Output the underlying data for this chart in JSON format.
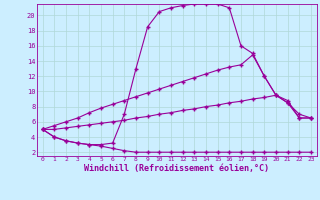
{
  "bg_color": "#cceeff",
  "grid_color": "#b0d8d8",
  "line_color": "#990099",
  "marker": "+",
  "markersize": 3.0,
  "linewidth": 0.8,
  "xlabel": "Windchill (Refroidissement éolien,°C)",
  "xlabel_fontsize": 6.0,
  "xlim": [
    -0.5,
    23.5
  ],
  "ylim": [
    1.5,
    21.5
  ],
  "xticks": [
    0,
    1,
    2,
    3,
    4,
    5,
    6,
    7,
    8,
    9,
    10,
    11,
    12,
    13,
    14,
    15,
    16,
    17,
    18,
    19,
    20,
    21,
    22,
    23
  ],
  "yticks": [
    2,
    4,
    6,
    8,
    10,
    12,
    14,
    16,
    18,
    20
  ],
  "series": [
    [
      5.0,
      4.0,
      3.5,
      3.2,
      3.0,
      2.8,
      2.5,
      2.2,
      2.0,
      2.0,
      2.0,
      2.0,
      2.0,
      2.0,
      2.0,
      2.0,
      2.0,
      2.0,
      2.0,
      2.0,
      2.0,
      2.0,
      2.0,
      2.0
    ],
    [
      5.0,
      4.0,
      3.5,
      3.2,
      3.0,
      3.0,
      3.2,
      7.0,
      13.0,
      18.5,
      20.5,
      21.0,
      21.3,
      21.5,
      21.5,
      21.5,
      21.0,
      16.0,
      15.0,
      12.0,
      9.5,
      8.5,
      7.0,
      6.5
    ],
    [
      5.0,
      5.5,
      6.0,
      6.5,
      7.2,
      7.8,
      8.3,
      8.8,
      9.3,
      9.8,
      10.3,
      10.8,
      11.3,
      11.8,
      12.3,
      12.8,
      13.2,
      13.5,
      14.8,
      12.0,
      9.5,
      8.8,
      6.5,
      6.5
    ],
    [
      5.0,
      5.0,
      5.2,
      5.4,
      5.6,
      5.8,
      6.0,
      6.2,
      6.5,
      6.7,
      7.0,
      7.2,
      7.5,
      7.7,
      8.0,
      8.2,
      8.5,
      8.7,
      9.0,
      9.2,
      9.5,
      8.5,
      6.5,
      6.5
    ]
  ]
}
